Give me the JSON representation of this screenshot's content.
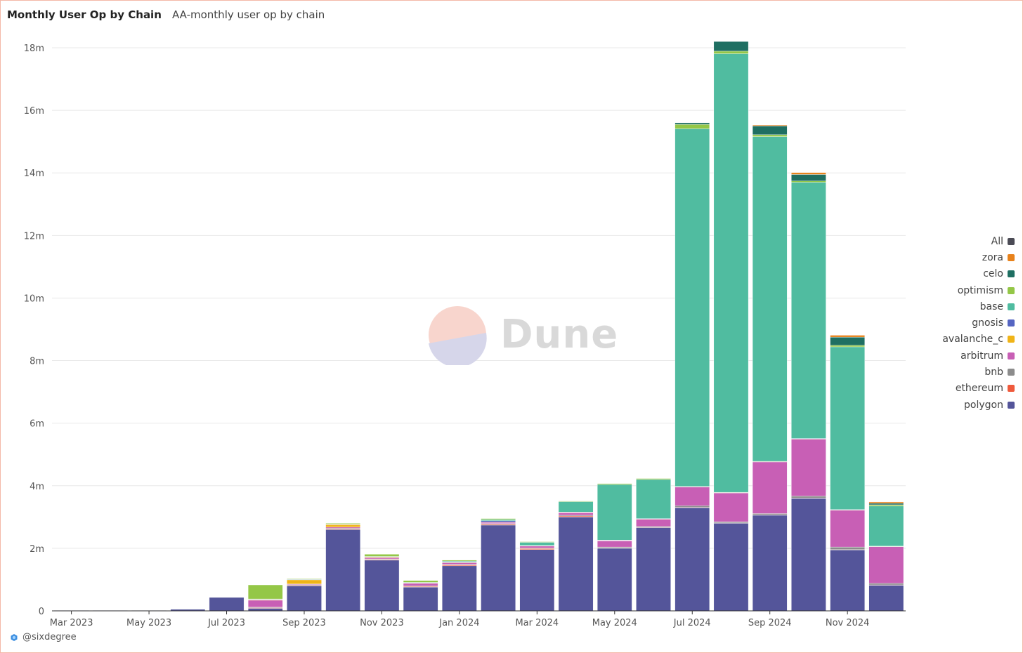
{
  "header": {
    "title": "Monthly User Op by Chain",
    "subtitle": "AA-monthly user op by chain"
  },
  "watermark": {
    "text": "Dune"
  },
  "footer": {
    "author": "@sixdegree"
  },
  "legend": [
    {
      "name": "All",
      "color": "#4b4b55"
    },
    {
      "name": "zora",
      "color": "#e8821b"
    },
    {
      "name": "celo",
      "color": "#1f6f62"
    },
    {
      "name": "optimism",
      "color": "#94c747"
    },
    {
      "name": "base",
      "color": "#50bca0"
    },
    {
      "name": "gnosis",
      "color": "#5565c2"
    },
    {
      "name": "avalanche_c",
      "color": "#f0b418"
    },
    {
      "name": "arbitrum",
      "color": "#c85fb5"
    },
    {
      "name": "bnb",
      "color": "#8c8c8c"
    },
    {
      "name": "ethereum",
      "color": "#ef5a3c"
    },
    {
      "name": "polygon",
      "color": "#54559a"
    }
  ],
  "chart_data": {
    "type": "bar",
    "stacked": true,
    "title": "Monthly User Op by Chain",
    "xlabel": "",
    "ylabel": "",
    "ylim": [
      0,
      18000000
    ],
    "yticks": [
      0,
      2000000,
      4000000,
      6000000,
      8000000,
      10000000,
      12000000,
      14000000,
      16000000,
      18000000
    ],
    "ytick_labels": [
      "0",
      "2m",
      "4m",
      "6m",
      "8m",
      "10m",
      "12m",
      "14m",
      "16m",
      "18m"
    ],
    "categories": [
      "Mar 2023",
      "Apr 2023",
      "May 2023",
      "Jun 2023",
      "Jul 2023",
      "Aug 2023",
      "Sep 2023",
      "Oct 2023",
      "Nov 2023",
      "Dec 2023",
      "Jan 2024",
      "Feb 2024",
      "Mar 2024",
      "Apr 2024",
      "May 2024",
      "Jun 2024",
      "Jul 2024",
      "Aug 2024",
      "Sep 2024",
      "Oct 2024",
      "Nov 2024",
      "Dec 2024"
    ],
    "xtick_labels": [
      "Mar 2023",
      "",
      "May 2023",
      "",
      "Jul 2023",
      "",
      "Sep 2023",
      "",
      "Nov 2023",
      "",
      "Jan 2024",
      "",
      "Mar 2024",
      "",
      "May 2024",
      "",
      "Jul 2024",
      "",
      "Sep 2024",
      "",
      "Nov 2024",
      ""
    ],
    "series": [
      {
        "name": "polygon",
        "color": "#54559a",
        "values": [
          5000,
          10000,
          15000,
          50000,
          430000,
          80000,
          800000,
          2600000,
          1620000,
          760000,
          1440000,
          2740000,
          1960000,
          3000000,
          2000000,
          2660000,
          3300000,
          2800000,
          3060000,
          3600000,
          1950000,
          820000
        ]
      },
      {
        "name": "ethereum",
        "color": "#ef5a3c",
        "values": [
          0,
          0,
          0,
          0,
          0,
          20000,
          20000,
          20000,
          20000,
          20000,
          30000,
          30000,
          30000,
          30000,
          10000,
          10000,
          10000,
          10000,
          10000,
          10000,
          10000,
          10000
        ]
      },
      {
        "name": "bnb",
        "color": "#8c8c8c",
        "values": [
          0,
          0,
          0,
          0,
          0,
          20000,
          20000,
          20000,
          20000,
          20000,
          20000,
          20000,
          20000,
          30000,
          30000,
          30000,
          50000,
          40000,
          40000,
          60000,
          80000,
          50000
        ]
      },
      {
        "name": "arbitrum",
        "color": "#c85fb5",
        "values": [
          0,
          0,
          0,
          0,
          0,
          220000,
          20000,
          40000,
          40000,
          80000,
          50000,
          40000,
          60000,
          80000,
          200000,
          230000,
          600000,
          920000,
          1650000,
          1820000,
          1180000,
          1170000
        ]
      },
      {
        "name": "avalanche_c",
        "color": "#f0b418",
        "values": [
          0,
          0,
          0,
          0,
          0,
          20000,
          130000,
          80000,
          20000,
          10000,
          10000,
          10000,
          10000,
          10000,
          10000,
          10000,
          10000,
          10000,
          10000,
          10000,
          10000,
          10000
        ]
      },
      {
        "name": "gnosis",
        "color": "#5565c2",
        "values": [
          0,
          0,
          0,
          0,
          0,
          10000,
          10000,
          10000,
          10000,
          10000,
          10000,
          40000,
          10000,
          10000,
          10000,
          10000,
          10000,
          10000,
          10000,
          10000,
          10000,
          10000
        ]
      },
      {
        "name": "base",
        "color": "#50bca0",
        "values": [
          0,
          0,
          0,
          0,
          0,
          10000,
          10000,
          10000,
          10000,
          10000,
          30000,
          40000,
          100000,
          330000,
          1780000,
          1250000,
          11430000,
          14020000,
          10380000,
          8190000,
          5200000,
          1280000
        ]
      },
      {
        "name": "optimism",
        "color": "#94c747",
        "values": [
          0,
          0,
          0,
          0,
          0,
          450000,
          20000,
          20000,
          70000,
          60000,
          30000,
          30000,
          20000,
          20000,
          30000,
          30000,
          140000,
          80000,
          60000,
          40000,
          50000,
          40000
        ]
      },
      {
        "name": "celo",
        "color": "#1f6f62",
        "values": [
          0,
          0,
          0,
          0,
          0,
          0,
          0,
          0,
          0,
          0,
          0,
          0,
          0,
          0,
          0,
          0,
          50000,
          310000,
          280000,
          210000,
          260000,
          50000
        ]
      },
      {
        "name": "zora",
        "color": "#e8821b",
        "values": [
          0,
          0,
          0,
          0,
          0,
          0,
          0,
          0,
          0,
          0,
          0,
          0,
          0,
          0,
          0,
          0,
          0,
          0,
          30000,
          60000,
          60000,
          40000
        ]
      }
    ],
    "legend_position": "right"
  }
}
